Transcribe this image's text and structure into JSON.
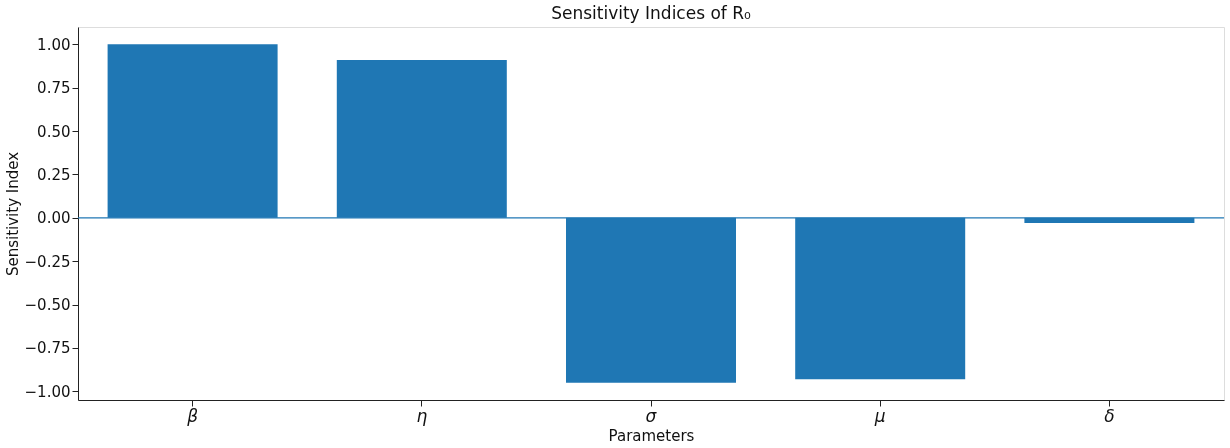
{
  "chart_data": {
    "type": "bar",
    "title": "Sensitivity Indices of R₀",
    "xlabel": "Parameters",
    "ylabel": "Sensitivity Index",
    "categories": [
      "β",
      "η",
      "σ",
      "μ",
      "δ"
    ],
    "values": [
      1.0,
      0.91,
      -0.95,
      -0.93,
      -0.03
    ],
    "color": "#1f77b4",
    "ylim": [
      -1.05,
      1.1
    ],
    "yticks": [
      {
        "value": -1,
        "label": "−1.00"
      },
      {
        "value": -0.75,
        "label": "−0.75"
      },
      {
        "value": -0.5,
        "label": "−0.50"
      },
      {
        "value": -0.25,
        "label": "−0.25"
      },
      {
        "value": 0,
        "label": "0.00"
      },
      {
        "value": 0.25,
        "label": "0.25"
      },
      {
        "value": 0.5,
        "label": "0.50"
      },
      {
        "value": 0.75,
        "label": "0.75"
      },
      {
        "value": 1,
        "label": "1.00"
      }
    ],
    "ref_lines": [
      {
        "axis": "y",
        "value": 0,
        "color": "#1f77b4"
      }
    ],
    "grid": false
  }
}
